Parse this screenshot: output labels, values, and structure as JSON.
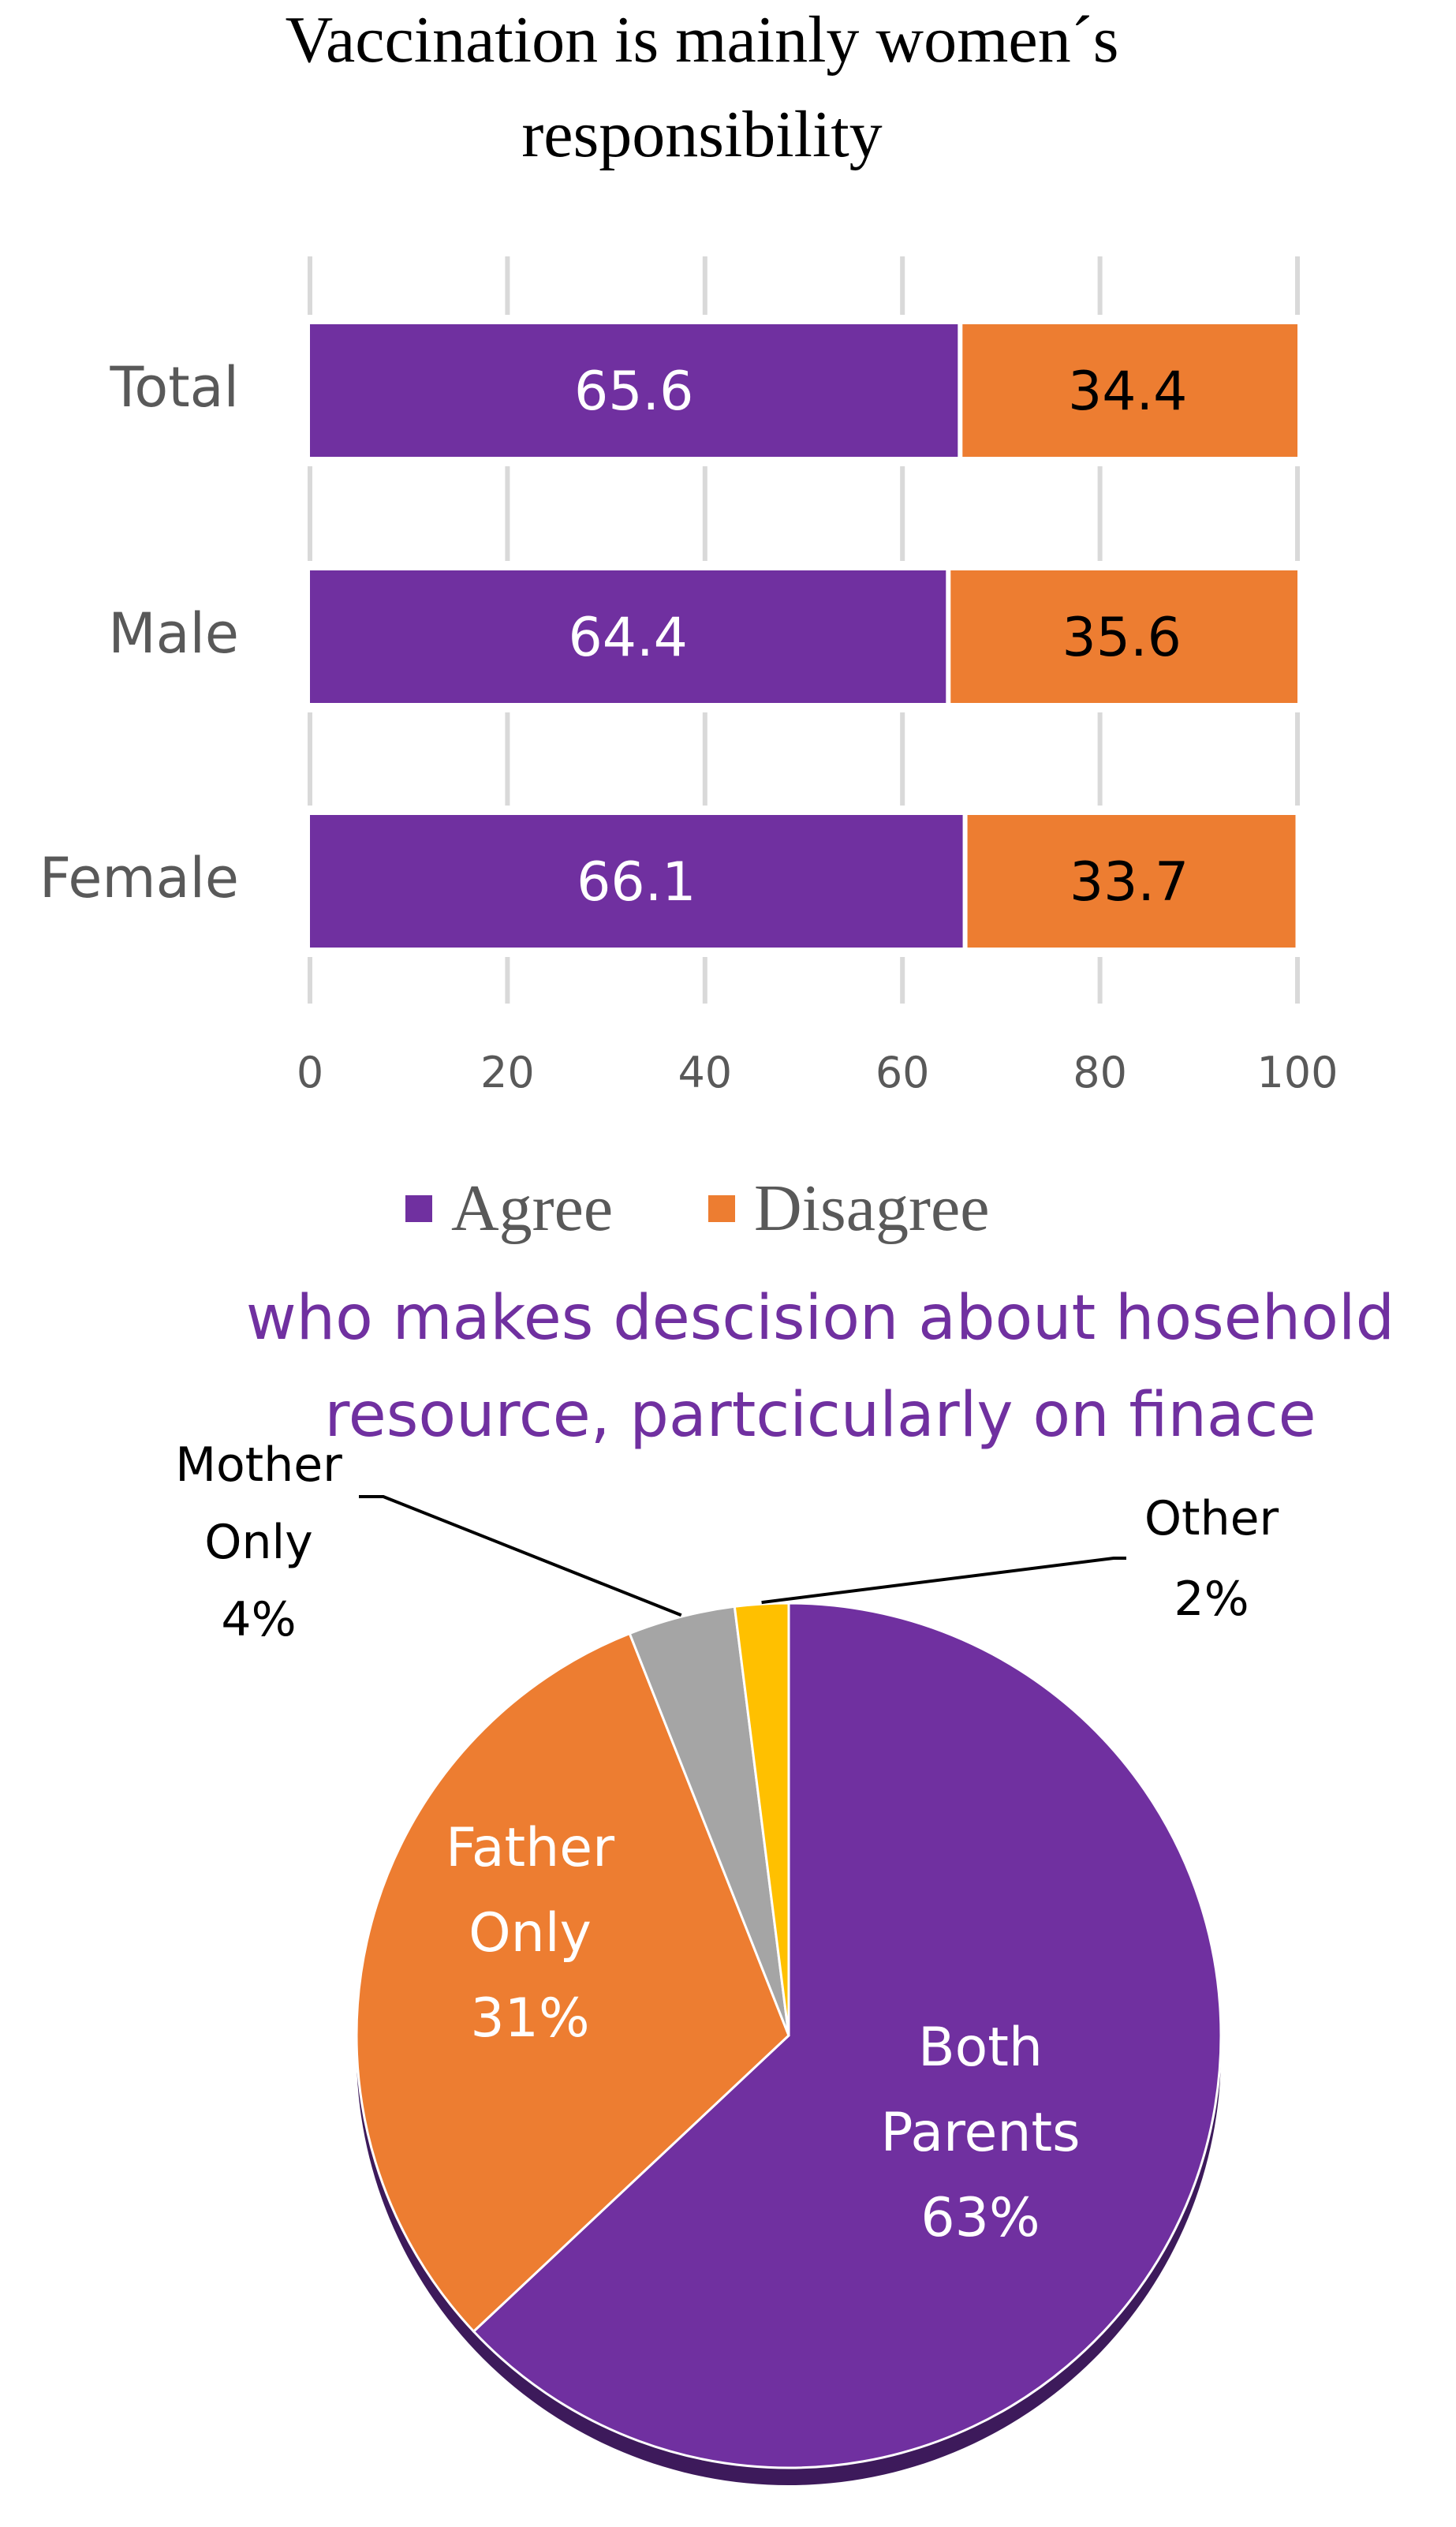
{
  "chart_data": [
    {
      "type": "bar",
      "stacked": true,
      "orientation": "horizontal",
      "title": "Vaccination is mainly women´s responsibility",
      "title_lines": [
        "Vaccination is mainly women´s",
        "responsibility"
      ],
      "categories": [
        "Total",
        "Male",
        "Female"
      ],
      "series": [
        {
          "name": "Agree",
          "color": "#7030a0",
          "label_color": "#ffffff",
          "values": [
            65.6,
            64.4,
            66.1
          ]
        },
        {
          "name": "Disagree",
          "color": "#ed7d31",
          "label_color": "#000000",
          "values": [
            34.4,
            35.6,
            33.7
          ]
        }
      ],
      "xlim": [
        0,
        100
      ],
      "xticks": [
        "0",
        "20",
        "40",
        "60",
        "80",
        "100"
      ],
      "grid": true,
      "legend": "bottom"
    },
    {
      "type": "pie",
      "title": "who makes descision about hosehold resource, partcicularly on finace",
      "title_lines": [
        "who makes descision about hosehold",
        "resource, partcicularly on finace"
      ],
      "title_color": "#7030a0",
      "slices": [
        {
          "name": "Both Parents",
          "value": 63,
          "label_lines": [
            "Both",
            "Parents",
            "63%"
          ],
          "color": "#7030a0",
          "label_color": "#ffffff"
        },
        {
          "name": "Father Only",
          "value": 31,
          "label_lines": [
            "Father",
            "Only",
            "31%"
          ],
          "color": "#ed7d31",
          "label_color": "#ffffff"
        },
        {
          "name": "Mother Only",
          "value": 4,
          "label_lines": [
            "Mother",
            "Only",
            "4%"
          ],
          "color": "#a5a5a5",
          "label_color": "#000000"
        },
        {
          "name": "Other",
          "value": 2,
          "label_lines": [
            "Other",
            "2%"
          ],
          "color": "#ffc000",
          "label_color": "#000000"
        }
      ]
    }
  ],
  "colors": {
    "grid": "#d9d9d9",
    "category_label": "#595959",
    "tick_label": "#595959",
    "legend_text": "#595959",
    "pie_shadow": "#3d1a5b",
    "leader_line": "#000000"
  }
}
